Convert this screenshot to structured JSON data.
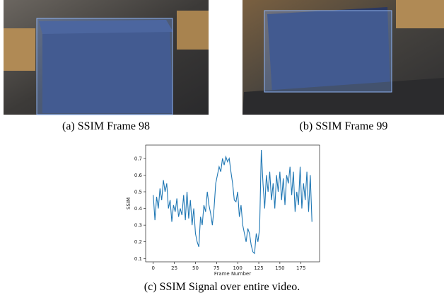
{
  "images": [
    {
      "caption": "(a) SSIM Frame 98"
    },
    {
      "caption": "(b) SSIM Frame 99"
    }
  ],
  "chart_data": {
    "type": "line",
    "caption": "(c) SSIM Signal over entire video.",
    "x_label": "Frame Number",
    "y_label": "SSIM",
    "color": "#1f77b4",
    "x": [
      0,
      2,
      4,
      6,
      8,
      10,
      12,
      14,
      16,
      18,
      20,
      22,
      24,
      26,
      28,
      30,
      32,
      34,
      36,
      38,
      40,
      42,
      44,
      46,
      48,
      50,
      52,
      54,
      56,
      58,
      60,
      62,
      64,
      66,
      68,
      70,
      72,
      74,
      76,
      78,
      80,
      82,
      84,
      86,
      88,
      90,
      92,
      94,
      96,
      98,
      100,
      102,
      104,
      106,
      108,
      110,
      112,
      114,
      116,
      118,
      120,
      122,
      124,
      126,
      128,
      130,
      132,
      134,
      136,
      138,
      140,
      142,
      144,
      146,
      148,
      150,
      152,
      154,
      156,
      158,
      160,
      162,
      164,
      166,
      168,
      170,
      172,
      174,
      176,
      178,
      180,
      182,
      184,
      186,
      188
    ],
    "values": [
      0.48,
      0.33,
      0.47,
      0.4,
      0.52,
      0.45,
      0.57,
      0.5,
      0.55,
      0.4,
      0.45,
      0.32,
      0.42,
      0.38,
      0.46,
      0.35,
      0.4,
      0.36,
      0.48,
      0.33,
      0.5,
      0.34,
      0.45,
      0.3,
      0.4,
      0.25,
      0.2,
      0.17,
      0.35,
      0.3,
      0.42,
      0.38,
      0.5,
      0.42,
      0.37,
      0.3,
      0.4,
      0.55,
      0.6,
      0.65,
      0.62,
      0.7,
      0.66,
      0.71,
      0.68,
      0.7,
      0.62,
      0.55,
      0.45,
      0.44,
      0.5,
      0.35,
      0.42,
      0.3,
      0.25,
      0.2,
      0.28,
      0.25,
      0.18,
      0.14,
      0.13,
      0.25,
      0.2,
      0.28,
      0.75,
      0.55,
      0.4,
      0.6,
      0.5,
      0.62,
      0.45,
      0.55,
      0.4,
      0.6,
      0.5,
      0.62,
      0.45,
      0.58,
      0.42,
      0.6,
      0.55,
      0.65,
      0.48,
      0.62,
      0.38,
      0.5,
      0.42,
      0.65,
      0.4,
      0.55,
      0.45,
      0.62,
      0.38,
      0.6,
      0.32
    ],
    "xlim": [
      -9,
      197
    ],
    "ylim": [
      0.08,
      0.78
    ],
    "xticks": [
      0,
      25,
      50,
      75,
      100,
      125,
      150,
      175
    ],
    "yticks": [
      0.1,
      0.2,
      0.3,
      0.4,
      0.5,
      0.6,
      0.7
    ]
  }
}
